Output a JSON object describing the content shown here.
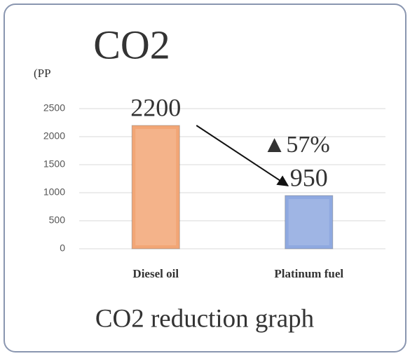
{
  "chart_data": {
    "type": "bar",
    "title": "CO2",
    "ylabel": "(PP",
    "subtitle": "CO2 reduction graph",
    "categories": [
      "Diesel oil",
      "Platinum fuel"
    ],
    "values": [
      2200,
      950
    ],
    "colors": [
      "#f2a676",
      "#8fa9e0"
    ],
    "ylim": [
      0,
      2500
    ],
    "yticks": [
      0,
      500,
      1000,
      1500,
      2000,
      2500
    ],
    "grid": true,
    "annotation": "▲57%"
  }
}
